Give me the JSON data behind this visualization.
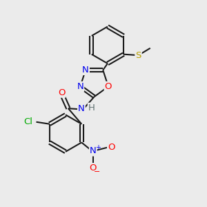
{
  "bg_color": "#ebebeb",
  "bond_color": "#1a1a1a",
  "bond_lw": 1.5,
  "atom_colors": {
    "N": "#0000ee",
    "O": "#ff0000",
    "S": "#b8a000",
    "Cl": "#00aa00",
    "H": "#607070",
    "C": "#1a1a1a"
  },
  "font_size": 9.5,
  "fig_size": [
    3.0,
    3.0
  ],
  "dpi": 100,
  "xlim": [
    0,
    10
  ],
  "ylim": [
    0,
    10
  ]
}
